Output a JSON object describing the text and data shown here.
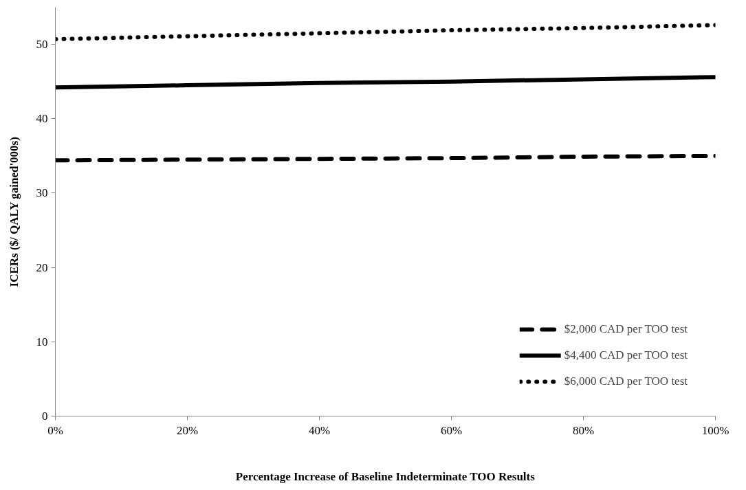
{
  "chart_data": {
    "type": "line",
    "xlabel": "Percentage Increase of Baseline Indeterminate TOO Results",
    "ylabel": "ICERs ($/ QALY gained'000s)",
    "x": [
      0,
      20,
      40,
      60,
      80,
      100
    ],
    "series": [
      {
        "name": "$2,000 CAD per TOO test",
        "color": "#000000",
        "line_style": "dashed",
        "values": [
          34.4,
          34.5,
          34.6,
          34.7,
          34.9,
          35.0
        ]
      },
      {
        "name": "$4,400 CAD per TOO test",
        "color": "#000000",
        "line_style": "solid",
        "values": [
          44.2,
          44.5,
          44.8,
          45.0,
          45.3,
          45.6
        ]
      },
      {
        "name": "$6,000 CAD per TOO test",
        "color": "#000000",
        "line_style": "dotted",
        "values": [
          50.7,
          51.1,
          51.5,
          51.9,
          52.2,
          52.6
        ]
      }
    ],
    "xlim": [
      0,
      100
    ],
    "ylim": [
      0,
      55
    ],
    "xticks": [
      {
        "value": 0,
        "label": "0%"
      },
      {
        "value": 20,
        "label": "20%"
      },
      {
        "value": 40,
        "label": "40%"
      },
      {
        "value": 60,
        "label": "60%"
      },
      {
        "value": 80,
        "label": "80%"
      },
      {
        "value": 100,
        "label": "100%"
      }
    ],
    "yticks": [
      0,
      10,
      20,
      30,
      40,
      50
    ],
    "grid": false,
    "legend": "bottom right"
  }
}
